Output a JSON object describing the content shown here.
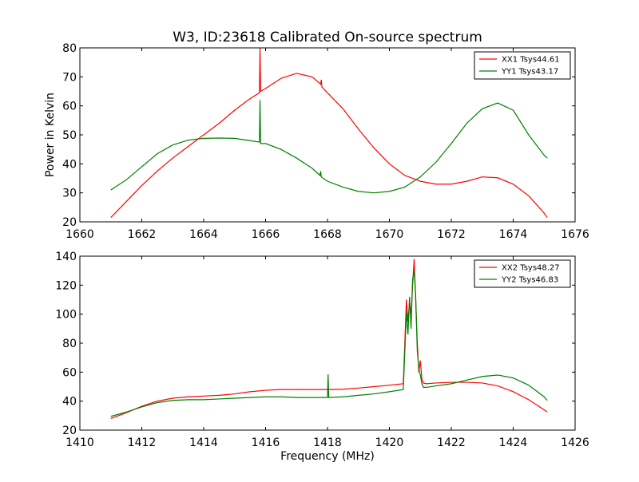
{
  "figure": {
    "title": "W3, ID:23618 Calibrated On-source spectrum",
    "ylabel": "Power in Kelvin",
    "xlabel": "Frequency (MHz)"
  },
  "chart_data": [
    {
      "type": "line",
      "xlim": [
        1660,
        1676
      ],
      "ylim": [
        20,
        80
      ],
      "x_ticks": [
        1660,
        1662,
        1664,
        1666,
        1668,
        1670,
        1672,
        1674,
        1676
      ],
      "y_ticks": [
        20,
        30,
        40,
        50,
        60,
        70,
        80
      ],
      "legend_position": "top-right",
      "grid": false,
      "series": [
        {
          "name": "XX1 Tsys44.61",
          "color": "#ff0000",
          "x": [
            1661.0,
            1661.5,
            1662.0,
            1662.5,
            1663.0,
            1663.5,
            1664.0,
            1664.5,
            1665.0,
            1665.5,
            1665.8,
            1665.82,
            1665.84,
            1666.0,
            1666.5,
            1667.0,
            1667.5,
            1667.78,
            1667.8,
            1667.82,
            1668.0,
            1668.5,
            1669.0,
            1669.5,
            1670.0,
            1670.5,
            1671.0,
            1671.5,
            1672.0,
            1672.5,
            1673.0,
            1673.5,
            1674.0,
            1674.5,
            1675.0,
            1675.1
          ],
          "y": [
            21.5,
            27.0,
            32.5,
            37.5,
            42.0,
            46.0,
            50.0,
            54.0,
            58.5,
            62.5,
            64.5,
            80.0,
            65.0,
            66.0,
            69.5,
            71.2,
            70.0,
            67.5,
            69.0,
            66.5,
            64.5,
            59.0,
            52.0,
            45.5,
            40.0,
            36.0,
            34.0,
            33.0,
            33.0,
            34.0,
            35.5,
            35.2,
            33.0,
            29.0,
            23.0,
            21.5
          ]
        },
        {
          "name": "YY1 Tsys43.17",
          "color": "#008000",
          "x": [
            1661.0,
            1661.5,
            1662.0,
            1662.5,
            1663.0,
            1663.5,
            1664.0,
            1664.5,
            1665.0,
            1665.5,
            1665.8,
            1665.82,
            1665.84,
            1666.0,
            1666.5,
            1667.0,
            1667.5,
            1667.76,
            1667.78,
            1667.8,
            1668.0,
            1668.5,
            1669.0,
            1669.5,
            1670.0,
            1670.5,
            1671.0,
            1671.5,
            1672.0,
            1672.5,
            1673.0,
            1673.5,
            1674.0,
            1674.5,
            1675.0,
            1675.1
          ],
          "y": [
            31.0,
            34.5,
            39.0,
            43.5,
            46.5,
            48.2,
            48.8,
            48.9,
            48.8,
            48.0,
            47.5,
            62.0,
            47.0,
            47.0,
            45.0,
            42.0,
            38.5,
            36.0,
            37.5,
            35.5,
            34.0,
            32.0,
            30.5,
            30.0,
            30.5,
            32.0,
            35.5,
            40.5,
            47.0,
            54.0,
            59.0,
            61.0,
            58.5,
            50.0,
            43.0,
            42.0
          ]
        }
      ]
    },
    {
      "type": "line",
      "xlim": [
        1410,
        1426
      ],
      "ylim": [
        20,
        140
      ],
      "x_ticks": [
        1410,
        1412,
        1414,
        1416,
        1418,
        1420,
        1422,
        1424,
        1426
      ],
      "y_ticks": [
        20,
        40,
        60,
        80,
        100,
        120,
        140
      ],
      "legend_position": "top-right",
      "grid": false,
      "series": [
        {
          "name": "XX2 Tsys48.27",
          "color": "#ff0000",
          "x": [
            1411.0,
            1411.5,
            1412.0,
            1412.5,
            1413.0,
            1413.5,
            1414.0,
            1414.5,
            1415.0,
            1415.5,
            1416.0,
            1416.5,
            1417.0,
            1417.5,
            1418.0,
            1418.5,
            1419.0,
            1419.5,
            1420.0,
            1420.45,
            1420.55,
            1420.6,
            1420.65,
            1420.7,
            1420.75,
            1420.8,
            1420.85,
            1420.9,
            1420.95,
            1421.0,
            1421.05,
            1421.1,
            1421.2,
            1421.5,
            1422.0,
            1422.5,
            1423.0,
            1423.5,
            1424.0,
            1424.5,
            1425.0,
            1425.1
          ],
          "y": [
            28.0,
            32.0,
            36.5,
            40.0,
            42.0,
            43.0,
            43.5,
            44.0,
            45.0,
            46.5,
            47.5,
            48.0,
            48.0,
            48.0,
            48.0,
            48.2,
            49.0,
            50.0,
            51.0,
            52.0,
            110.0,
            95.0,
            108.0,
            100.0,
            120.0,
            138.0,
            110.0,
            81.0,
            60.0,
            68.0,
            55.0,
            52.5,
            52.0,
            52.5,
            53.0,
            53.0,
            52.5,
            50.5,
            46.5,
            41.0,
            34.0,
            32.5
          ]
        },
        {
          "name": "YY2 Tsys46.83",
          "color": "#008000",
          "x": [
            1411.0,
            1411.5,
            1412.0,
            1412.5,
            1413.0,
            1413.5,
            1414.0,
            1414.5,
            1415.0,
            1415.5,
            1416.0,
            1416.5,
            1417.0,
            1417.5,
            1418.0,
            1418.02,
            1418.04,
            1418.5,
            1419.0,
            1419.5,
            1420.0,
            1420.45,
            1420.55,
            1420.6,
            1420.65,
            1420.7,
            1420.75,
            1420.8,
            1420.85,
            1420.9,
            1420.95,
            1421.0,
            1421.05,
            1421.1,
            1421.2,
            1421.5,
            1422.0,
            1422.5,
            1423.0,
            1423.5,
            1424.0,
            1424.5,
            1425.0,
            1425.1
          ],
          "y": [
            29.5,
            32.5,
            36.0,
            39.0,
            40.5,
            41.0,
            41.0,
            41.5,
            42.0,
            42.5,
            43.0,
            43.0,
            42.5,
            42.5,
            42.5,
            58.5,
            42.5,
            43.0,
            44.0,
            45.0,
            46.5,
            48.0,
            102.0,
            86.0,
            112.0,
            90.0,
            124.0,
            130.0,
            112.0,
            75.0,
            62.0,
            58.0,
            52.0,
            49.5,
            49.5,
            50.5,
            52.0,
            54.5,
            57.0,
            58.0,
            56.0,
            51.0,
            43.0,
            40.5
          ]
        }
      ]
    }
  ]
}
